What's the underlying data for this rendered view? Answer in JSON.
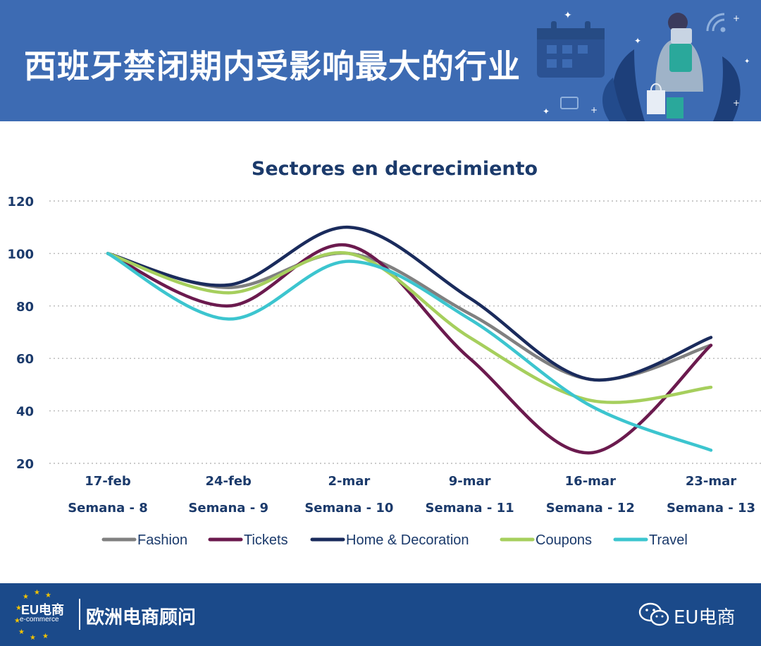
{
  "header": {
    "title": "西班牙禁闭期内受影响最大的行业"
  },
  "chart_data": {
    "type": "line",
    "title": "Sectores en decrecimiento",
    "categories": [
      "17-feb",
      "24-feb",
      "2-mar",
      "9-mar",
      "16-mar",
      "23-mar"
    ],
    "sub_categories": [
      "Semana - 8",
      "Semana - 9",
      "Semana - 10",
      "Semana - 11",
      "Semana - 12",
      "Semana - 13"
    ],
    "ylim": [
      20,
      120
    ],
    "yticks": [
      20,
      40,
      60,
      80,
      100,
      120
    ],
    "grid": true,
    "legend_position": "bottom",
    "series": [
      {
        "name": "Fashion",
        "color": "#808080",
        "values": [
          100,
          87,
          100,
          77,
          52,
          65
        ]
      },
      {
        "name": "Tickets",
        "color": "#6b1a4e",
        "values": [
          100,
          80,
          103,
          60,
          24,
          65
        ]
      },
      {
        "name": "Home & Decoration",
        "color": "#1a2b5c",
        "values": [
          100,
          88,
          110,
          83,
          52,
          68
        ]
      },
      {
        "name": "Coupons",
        "color": "#a6cf5d",
        "values": [
          100,
          85,
          100,
          68,
          44,
          49
        ]
      },
      {
        "name": "Travel",
        "color": "#3cc5cf",
        "values": [
          100,
          75,
          97,
          75,
          42,
          25
        ]
      }
    ]
  },
  "footer": {
    "logo_text": "EU电商",
    "logo_subtext": "e-commerce",
    "name": "欧洲电商顾问",
    "account": "EU电商"
  },
  "colors": {
    "header_bg": "#3d6bb3",
    "footer_bg": "#1b4a8a",
    "title_color": "#1b3a6b",
    "tick_color": "#1b3a6b"
  },
  "icons": [
    "calendar-icon",
    "shopping-bag-icon",
    "wifi-icon",
    "wechat-icon",
    "eu-stars-logo"
  ]
}
